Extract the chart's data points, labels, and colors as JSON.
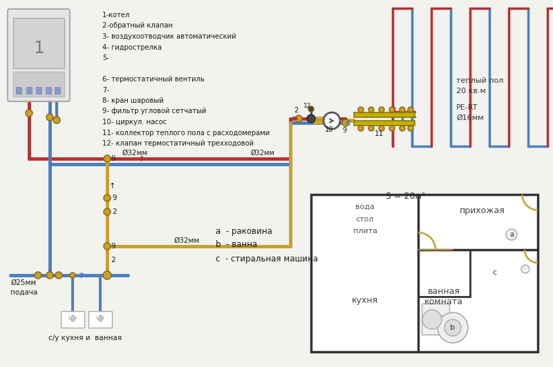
{
  "bg_color": "#f2f2ee",
  "legend_items": [
    "1-котел",
    "2-обратный клапан",
    "3- воздухоотводчик автоматический",
    "4- гидрострелка",
    "5-",
    "",
    "6- термостатичный вентиль",
    "7-",
    "8- кран шаровый",
    "9- фильтр угловой сетчатый",
    "10- циркул. насос",
    "11- коллектор теплого пола с расходомерами",
    "12- клапан термостатичный трехходовой"
  ],
  "label_a": "a  - раковина",
  "label_b": "b  - ванна",
  "label_c": "c  - стиральная машина",
  "warm_floor_1": "теплый пол",
  "warm_floor_2": "20 кв.м",
  "pe_rt_1": "PE-RT",
  "pe_rt_2": "Ø16мм",
  "d32_1": "Ø32мм",
  "d32_2": "Ø32мм",
  "d25": "Ø25мм",
  "podacha": "подача",
  "su": "с/у кухня и  ванная",
  "hot": "#b83030",
  "cold": "#4a7fbf",
  "tan": "#c8a030",
  "wall": "#333333",
  "room_voda": "вода",
  "room_stol": "стол",
  "room_plita": "плита",
  "room_s20": "S = 20м²",
  "room_kitchen": "кухня",
  "room_hall": "прихожая",
  "room_bath": "ванная\nкомната"
}
